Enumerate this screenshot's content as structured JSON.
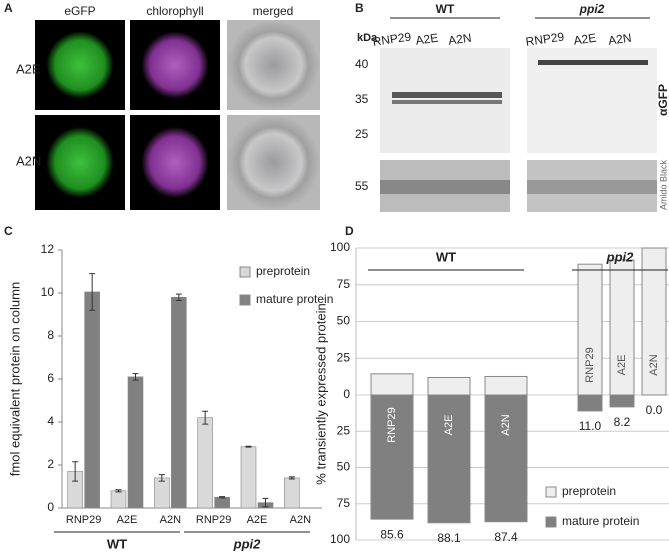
{
  "panel_labels": [
    "A",
    "B",
    "C",
    "D"
  ],
  "panel_a": {
    "columns": [
      "eGFP",
      "chlorophyll",
      "merged"
    ],
    "rows": [
      "A2E",
      "A2N"
    ]
  },
  "panel_b": {
    "groups": [
      "WT",
      "ppi2"
    ],
    "lanes": [
      "RNP29",
      "A2E",
      "A2N",
      "RNP29",
      "A2E",
      "A2N"
    ],
    "unit": "kDa",
    "markers": [
      40,
      35,
      25,
      55
    ],
    "antibody": "αGFP",
    "stain": "Amido Black"
  },
  "chart_data": [
    {
      "type": "bar",
      "y_label": "fmol equivalent protein on column",
      "categories": [
        "RNP29",
        "A2E",
        "A2N",
        "RNP29",
        "A2E",
        "A2N"
      ],
      "groups": [
        "WT",
        "ppi2"
      ],
      "series": [
        {
          "name": "preprotein",
          "color": "#d9d9d9",
          "values": [
            1.7,
            0.8,
            1.4,
            4.2,
            2.85,
            1.4
          ],
          "errors": [
            0.45,
            0.05,
            0.15,
            0.3,
            0.02,
            0.05
          ]
        },
        {
          "name": "mature protein",
          "color": "#808080",
          "values": [
            10.05,
            6.1,
            9.8,
            0.5,
            0.25,
            0
          ],
          "errors": [
            0.85,
            0.15,
            0.15,
            0.03,
            0.2,
            null
          ]
        }
      ],
      "ylim": [
        0,
        12
      ],
      "yticks": [
        0,
        2,
        4,
        6,
        8,
        10,
        12
      ],
      "legend": "upper right"
    },
    {
      "type": "diverging-bar",
      "y_label": "% transiently expressed protein",
      "categories": [
        "RNP29",
        "A2E",
        "A2N",
        "RNP29",
        "A2E",
        "A2N"
      ],
      "groups": [
        "WT",
        "ppi2"
      ],
      "series": [
        {
          "name": "preprotein",
          "color": "#eeeeee",
          "values": [
            14.4,
            11.9,
            12.6,
            89,
            91.8,
            100
          ]
        },
        {
          "name": "mature protein",
          "color": "#808080",
          "axis": "y2",
          "values": [
            85.6,
            88.1,
            87.4,
            11,
            8.2,
            0
          ],
          "value_labels": [
            "85.6",
            "88.1",
            "87.4",
            "11.0",
            "8.2",
            "0.0"
          ]
        }
      ],
      "ylim": [
        0,
        100
      ],
      "yticks": [
        0,
        25,
        50,
        75,
        100
      ],
      "y2lim": [
        0,
        100
      ],
      "y2ticks": [
        25,
        50,
        75,
        100
      ],
      "legend": "lower right"
    }
  ]
}
